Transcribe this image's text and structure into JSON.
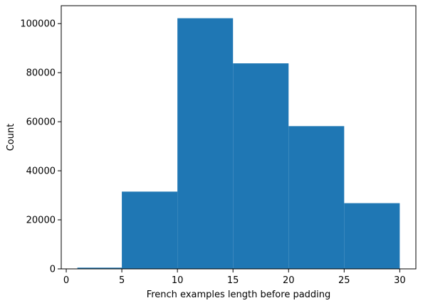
{
  "chart_data": {
    "type": "bar",
    "subtype": "histogram",
    "bins": [
      {
        "x0": 1,
        "x1": 5,
        "count": 500
      },
      {
        "x0": 5,
        "x1": 10,
        "count": 31500
      },
      {
        "x0": 10,
        "x1": 15,
        "count": 102200
      },
      {
        "x0": 15,
        "x1": 20,
        "count": 83800
      },
      {
        "x0": 20,
        "x1": 25,
        "count": 58200
      },
      {
        "x0": 25,
        "x1": 30,
        "count": 26800
      }
    ],
    "title": "",
    "xlabel": "French examples length before padding",
    "ylabel": "Count",
    "xlim": [
      -0.45,
      31.45
    ],
    "ylim": [
      0,
      107310
    ],
    "xticks": [
      0,
      5,
      10,
      15,
      20,
      25,
      30
    ],
    "xtick_labels": [
      "0",
      "5",
      "10",
      "15",
      "20",
      "25",
      "30"
    ],
    "yticks": [
      0,
      20000,
      40000,
      60000,
      80000,
      100000
    ],
    "ytick_labels": [
      "0",
      "20000",
      "40000",
      "60000",
      "80000",
      "100000"
    ],
    "grid": false,
    "legend": "none",
    "bar_color": "#1f77b4"
  }
}
